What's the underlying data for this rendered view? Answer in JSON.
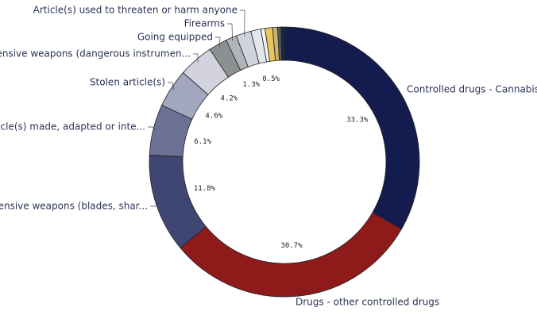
{
  "chart_data": {
    "type": "donut",
    "categories": [
      "Controlled drugs - Cannabis",
      "Drugs - other controlled drugs",
      "Offensive weapons (blades, shar...",
      "Article(s) made, adapted or inte...",
      "Stolen article(s)",
      "Offensive weapons (dangerous instrumen...",
      "Going equipped",
      "Firearms",
      "Article(s) used to threaten or harm anyone",
      null,
      null,
      null,
      null,
      null,
      null
    ],
    "values": [
      33.3,
      30.7,
      11.8,
      6.1,
      4.6,
      4.2,
      2.2,
      1.3,
      1.8,
      1.2,
      0.5,
      0.9,
      0.6,
      0.4,
      0.4
    ],
    "value_labels": [
      "33.3%",
      "30.7%",
      "11.8%",
      "6.1%",
      "4.6%",
      "4.2%",
      null,
      "1.3%",
      null,
      null,
      "0.5%",
      null,
      null,
      null,
      null
    ],
    "colors": [
      "#141c4f",
      "#8f1a1a",
      "#3f4672",
      "#6c7196",
      "#a3a6bf",
      "#d2d3df",
      "#8c9090",
      "#b0b4b8",
      "#cfd3dc",
      "#e4e6ee",
      "#f4f4f7",
      "#e8c65a",
      "#c9b36f",
      "#555a60",
      "#1a2a3a"
    ]
  }
}
